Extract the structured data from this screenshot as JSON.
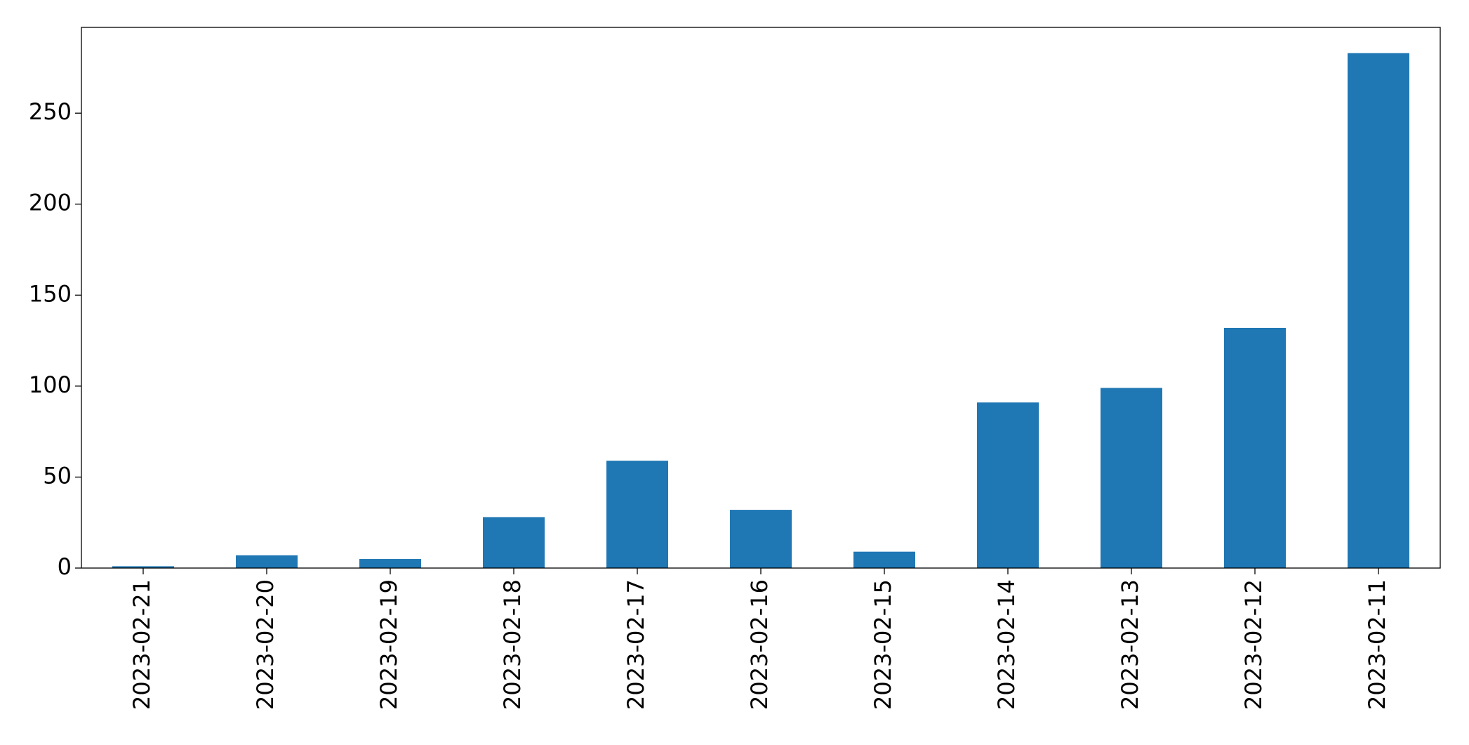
{
  "chart_data": {
    "type": "bar",
    "categories": [
      "2023-02-21",
      "2023-02-20",
      "2023-02-19",
      "2023-02-18",
      "2023-02-17",
      "2023-02-16",
      "2023-02-15",
      "2023-02-14",
      "2023-02-13",
      "2023-02-12",
      "2023-02-11"
    ],
    "values": [
      1,
      7,
      5,
      28,
      59,
      32,
      9,
      91,
      99,
      132,
      283
    ],
    "color": "#1f77b4",
    "ylim": [
      0,
      297.15
    ],
    "yticks": [
      0,
      50,
      100,
      150,
      200,
      250
    ],
    "grid": false
  }
}
